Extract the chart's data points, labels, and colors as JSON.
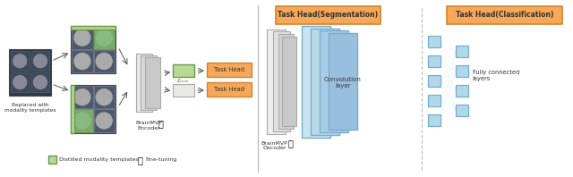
{
  "left_label": "Replaced with\nmodality templates",
  "encoder_label": "BrainMVP\nEncoder",
  "decoder_label": "BrainMVP\nDecoder",
  "legend_green": "Distilled modality templates",
  "legend_fire": "Fine-tuning",
  "task_head_seg": "Task Head(Segmentation)",
  "task_head_cls": "Task Head(Classification)",
  "task_head1": "Task Head",
  "task_head2": "Task Head",
  "conv_label": "Convolution\nlayer",
  "fc_label": "Fully connected\nlayers",
  "orange_fill": "#F5A85A",
  "orange_edge": "#D4832A",
  "green_fill": "#B8D898",
  "green_edge": "#6A9A4A",
  "blue_fill": "#B0D8E8",
  "blue_edge": "#7AACCF",
  "gray1": "#E8E8E8",
  "gray2": "#D8D8D8",
  "gray3": "#C8C8C8",
  "gray4": "#B8B8B8",
  "dark_bg": "#2A3A4A",
  "white": "#FFFFFF",
  "arrow_color": "#666666"
}
